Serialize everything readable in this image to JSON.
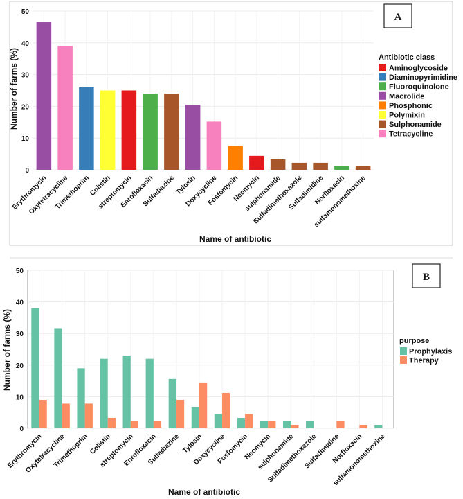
{
  "chart_data": [
    {
      "type": "bar",
      "panel_label": "A",
      "xlabel": "Name of antibiotic",
      "ylabel": "Number of farms (%)",
      "ylim": [
        0,
        50
      ],
      "yticks": [
        0,
        10,
        20,
        30,
        40,
        50
      ],
      "categories": [
        "Erythromycin",
        "Oxytetracycline",
        "Trimethoprim",
        "Colistin",
        "streptomycin",
        "Enrofloxacin",
        "Sulfadiazine",
        "Tylosin",
        "Doxycycline",
        "Fosfomycin",
        "Neomycin",
        "sulphonamide",
        "Sulfadimethoxazole",
        "Sulfadimidine",
        "Norfloxacin",
        "sulfamonomethoxine"
      ],
      "values": [
        46.5,
        39,
        26,
        25,
        25,
        24,
        24,
        20.5,
        15.2,
        7.6,
        4.4,
        3.3,
        2.2,
        2.2,
        1.1,
        1.1
      ],
      "classes": [
        "Macrolide",
        "Tetracycline",
        "Diaminopyrimidine",
        "Polymixin",
        "Aminoglycoside",
        "Fluoroquinolone",
        "Sulphonamide",
        "Macrolide",
        "Tetracycline",
        "Phosphonic",
        "Aminoglycoside",
        "Sulphonamide",
        "Sulphonamide",
        "Sulphonamide",
        "Fluoroquinolone",
        "Sulphonamide"
      ],
      "legend": {
        "title": "Antibiotic class",
        "entries": [
          {
            "name": "Aminoglycoside",
            "color": "#e41a1c"
          },
          {
            "name": "Diaminopyrimidine",
            "color": "#377eb8"
          },
          {
            "name": "Fluoroquinolone",
            "color": "#4daf4a"
          },
          {
            "name": "Macrolide",
            "color": "#984ea3"
          },
          {
            "name": "Phosphonic",
            "color": "#ff7f00"
          },
          {
            "name": "Polymixin",
            "color": "#ffff33"
          },
          {
            "name": "Sulphonamide",
            "color": "#a65628"
          },
          {
            "name": "Tetracycline",
            "color": "#f781bf"
          }
        ]
      }
    },
    {
      "type": "bar",
      "panel_label": "B",
      "xlabel": "Name of antibiotic",
      "ylabel": "Number of farms (%)",
      "ylim": [
        0,
        50
      ],
      "yticks": [
        0,
        10,
        20,
        30,
        40,
        50
      ],
      "categories": [
        "Erythromycin",
        "Oxytetracycline",
        "Trimethoprim",
        "Colistin",
        "streptomycin",
        "Enrofloxacin",
        "Sulfadiazine",
        "Tylosin",
        "Doxycycline",
        "Fosfomycin",
        "Neomycin",
        "sulphonamide",
        "Sulfadimethoxazole",
        "Sulfadimidine",
        "Norfloxacin",
        "sulfamonomethoxine"
      ],
      "series": [
        {
          "name": "Prophylaxis",
          "color": "#66c2a5",
          "values": [
            38,
            31.7,
            19,
            22,
            23,
            22,
            15.6,
            6.8,
            4.5,
            3.3,
            2.2,
            2.2,
            2.2,
            0,
            0,
            1.1
          ]
        },
        {
          "name": "Therapy",
          "color": "#fc8d62",
          "values": [
            9,
            7.8,
            7.8,
            3.3,
            2.2,
            2.2,
            9,
            14.5,
            11.2,
            4.5,
            2.2,
            1.1,
            0,
            2.2,
            1.1,
            0
          ]
        }
      ],
      "legend": {
        "title": "purpose"
      }
    }
  ]
}
